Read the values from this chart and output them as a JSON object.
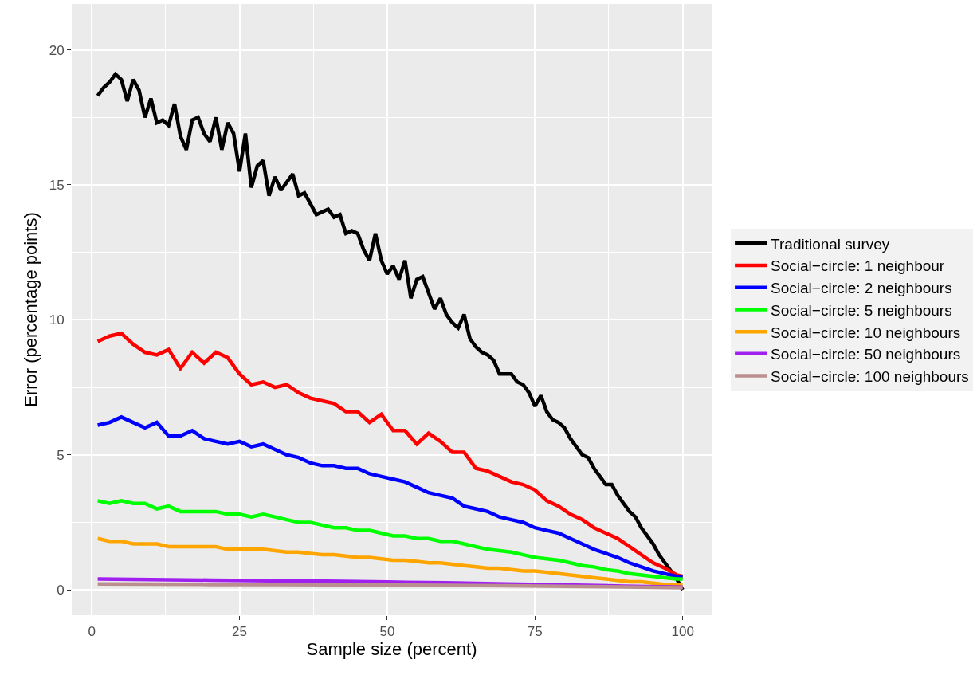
{
  "chart_data": {
    "type": "line",
    "xlabel": "Sample size (percent)",
    "ylabel": "Error (percentage points)",
    "xlim": [
      -3.4,
      104.9
    ],
    "ylim": [
      -0.94,
      21.7
    ],
    "xticks": [
      0,
      25,
      50,
      75,
      100
    ],
    "yticks": [
      0,
      5,
      10,
      15,
      20
    ],
    "grid": true,
    "legend": "right",
    "line_style": "solid",
    "marker": "none",
    "series": [
      {
        "name": "Traditional survey",
        "color": "#000000",
        "x": [
          1,
          2,
          3,
          4,
          5,
          6,
          7,
          8,
          9,
          10,
          11,
          12,
          13,
          14,
          15,
          16,
          17,
          18,
          19,
          20,
          21,
          22,
          23,
          24,
          25,
          26,
          27,
          28,
          29,
          30,
          31,
          32,
          33,
          34,
          35,
          36,
          37,
          38,
          39,
          40,
          41,
          42,
          43,
          44,
          45,
          46,
          47,
          48,
          49,
          50,
          51,
          52,
          53,
          54,
          55,
          56,
          57,
          58,
          59,
          60,
          61,
          62,
          63,
          64,
          65,
          66,
          67,
          68,
          69,
          70,
          71,
          72,
          73,
          74,
          75,
          76,
          77,
          78,
          79,
          80,
          81,
          82,
          83,
          84,
          85,
          86,
          87,
          88,
          89,
          90,
          91,
          92,
          93,
          94,
          95,
          96,
          97,
          98,
          99,
          100
        ],
        "values": [
          18.3,
          18.6,
          18.8,
          19.1,
          18.9,
          18.1,
          18.9,
          18.5,
          17.5,
          18.2,
          17.3,
          17.4,
          17.2,
          18.0,
          16.8,
          16.3,
          17.4,
          17.5,
          16.9,
          16.6,
          17.5,
          16.3,
          17.3,
          16.9,
          15.5,
          16.9,
          14.9,
          15.7,
          15.9,
          14.6,
          15.3,
          14.8,
          15.1,
          15.4,
          14.6,
          14.7,
          14.3,
          13.9,
          14.0,
          14.1,
          13.8,
          13.9,
          13.2,
          13.3,
          13.2,
          12.6,
          12.2,
          13.2,
          12.2,
          11.7,
          12.0,
          11.5,
          12.2,
          10.8,
          11.5,
          11.6,
          11.0,
          10.4,
          10.8,
          10.2,
          9.9,
          9.7,
          10.2,
          9.3,
          9.0,
          8.8,
          8.7,
          8.5,
          8.0,
          8.0,
          8.0,
          7.7,
          7.6,
          7.3,
          6.8,
          7.2,
          6.6,
          6.3,
          6.2,
          6.0,
          5.6,
          5.3,
          5.0,
          4.9,
          4.5,
          4.2,
          3.9,
          3.9,
          3.5,
          3.2,
          2.9,
          2.7,
          2.3,
          2.0,
          1.7,
          1.3,
          1.0,
          0.7,
          0.4,
          0.0
        ]
      },
      {
        "name": "Social−circle: 1 neighbour",
        "color": "#ff0000",
        "x": [
          1,
          3,
          5,
          7,
          9,
          11,
          13,
          15,
          17,
          19,
          21,
          23,
          25,
          27,
          29,
          31,
          33,
          35,
          37,
          39,
          41,
          43,
          45,
          47,
          49,
          51,
          53,
          55,
          57,
          59,
          61,
          63,
          65,
          67,
          69,
          71,
          73,
          75,
          77,
          79,
          81,
          83,
          85,
          87,
          89,
          91,
          93,
          95,
          97,
          99,
          100
        ],
        "values": [
          9.2,
          9.4,
          9.5,
          9.1,
          8.8,
          8.7,
          8.9,
          8.2,
          8.8,
          8.4,
          8.8,
          8.6,
          8.0,
          7.6,
          7.7,
          7.5,
          7.6,
          7.3,
          7.1,
          7.0,
          6.9,
          6.6,
          6.6,
          6.2,
          6.5,
          5.9,
          5.9,
          5.4,
          5.8,
          5.5,
          5.1,
          5.1,
          4.5,
          4.4,
          4.2,
          4.0,
          3.9,
          3.7,
          3.3,
          3.1,
          2.8,
          2.6,
          2.3,
          2.1,
          1.9,
          1.6,
          1.3,
          1.0,
          0.8,
          0.55,
          0.5
        ]
      },
      {
        "name": "Social−circle: 2 neighbours",
        "color": "#0000ff",
        "x": [
          1,
          3,
          5,
          7,
          9,
          11,
          13,
          15,
          17,
          19,
          21,
          23,
          25,
          27,
          29,
          31,
          33,
          35,
          37,
          39,
          41,
          43,
          45,
          47,
          49,
          51,
          53,
          55,
          57,
          59,
          61,
          63,
          65,
          67,
          69,
          71,
          73,
          75,
          77,
          79,
          81,
          83,
          85,
          87,
          89,
          91,
          93,
          95,
          97,
          99,
          100
        ],
        "values": [
          6.1,
          6.2,
          6.4,
          6.2,
          6.0,
          6.2,
          5.7,
          5.7,
          5.9,
          5.6,
          5.5,
          5.4,
          5.5,
          5.3,
          5.4,
          5.2,
          5.0,
          4.9,
          4.7,
          4.6,
          4.6,
          4.5,
          4.5,
          4.3,
          4.2,
          4.1,
          4.0,
          3.8,
          3.6,
          3.5,
          3.4,
          3.1,
          3.0,
          2.9,
          2.7,
          2.6,
          2.5,
          2.3,
          2.2,
          2.1,
          1.9,
          1.7,
          1.5,
          1.35,
          1.2,
          1.0,
          0.85,
          0.7,
          0.6,
          0.5,
          0.5
        ]
      },
      {
        "name": "Social−circle: 5 neighbours",
        "color": "#00ff00",
        "x": [
          1,
          3,
          5,
          7,
          9,
          11,
          13,
          15,
          17,
          19,
          21,
          23,
          25,
          27,
          29,
          31,
          33,
          35,
          37,
          39,
          41,
          43,
          45,
          47,
          49,
          51,
          53,
          55,
          57,
          59,
          61,
          63,
          65,
          67,
          69,
          71,
          73,
          75,
          77,
          79,
          81,
          83,
          85,
          87,
          89,
          91,
          93,
          95,
          97,
          99,
          100
        ],
        "values": [
          3.3,
          3.2,
          3.3,
          3.2,
          3.2,
          3.0,
          3.1,
          2.9,
          2.9,
          2.9,
          2.9,
          2.8,
          2.8,
          2.7,
          2.8,
          2.7,
          2.6,
          2.5,
          2.5,
          2.4,
          2.3,
          2.3,
          2.2,
          2.2,
          2.1,
          2.0,
          2.0,
          1.9,
          1.9,
          1.8,
          1.8,
          1.7,
          1.6,
          1.5,
          1.45,
          1.4,
          1.3,
          1.2,
          1.15,
          1.1,
          1.0,
          0.9,
          0.85,
          0.75,
          0.7,
          0.6,
          0.55,
          0.5,
          0.45,
          0.4,
          0.4
        ]
      },
      {
        "name": "Social−circle: 10 neighbours",
        "color": "#ffa500",
        "x": [
          1,
          3,
          5,
          7,
          9,
          11,
          13,
          15,
          17,
          19,
          21,
          23,
          25,
          27,
          29,
          31,
          33,
          35,
          37,
          39,
          41,
          43,
          45,
          47,
          49,
          51,
          53,
          55,
          57,
          59,
          61,
          63,
          65,
          67,
          69,
          71,
          73,
          75,
          77,
          79,
          81,
          83,
          85,
          87,
          89,
          91,
          93,
          95,
          97,
          99,
          100
        ],
        "values": [
          1.9,
          1.8,
          1.8,
          1.7,
          1.7,
          1.7,
          1.6,
          1.6,
          1.6,
          1.6,
          1.6,
          1.5,
          1.5,
          1.5,
          1.5,
          1.45,
          1.4,
          1.4,
          1.35,
          1.3,
          1.3,
          1.25,
          1.2,
          1.2,
          1.15,
          1.1,
          1.1,
          1.05,
          1.0,
          1.0,
          0.95,
          0.9,
          0.85,
          0.8,
          0.8,
          0.75,
          0.7,
          0.7,
          0.65,
          0.6,
          0.55,
          0.5,
          0.45,
          0.4,
          0.35,
          0.3,
          0.3,
          0.25,
          0.2,
          0.2,
          0.2
        ]
      },
      {
        "name": "Social−circle: 50 neighbours",
        "color": "#a020f0",
        "x": [
          1,
          10,
          20,
          30,
          40,
          50,
          60,
          70,
          80,
          90,
          100
        ],
        "values": [
          0.4,
          0.38,
          0.36,
          0.34,
          0.32,
          0.29,
          0.26,
          0.22,
          0.18,
          0.14,
          0.1
        ]
      },
      {
        "name": "Social−circle: 100 neighbours",
        "color": "#bc8f8f",
        "x": [
          1,
          10,
          20,
          30,
          40,
          50,
          60,
          70,
          80,
          90,
          100
        ],
        "values": [
          0.22,
          0.21,
          0.2,
          0.2,
          0.19,
          0.18,
          0.17,
          0.15,
          0.13,
          0.11,
          0.08
        ]
      }
    ]
  }
}
